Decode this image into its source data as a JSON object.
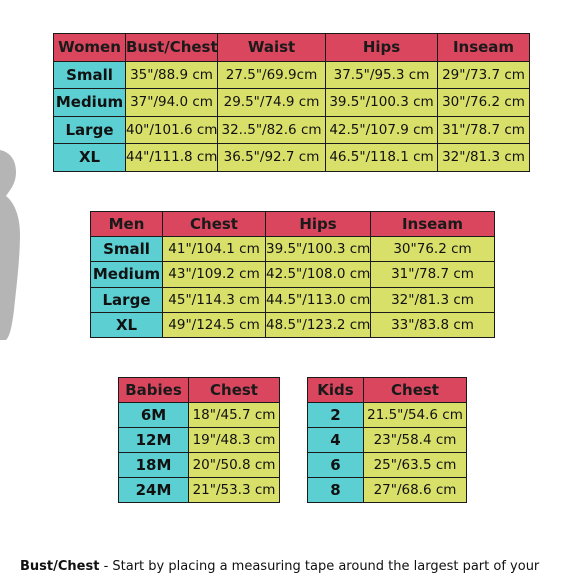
{
  "women": {
    "headers": [
      "Women",
      "Bust/Chest",
      "Waist",
      "Hips",
      "Inseam"
    ],
    "rows": [
      [
        "Small",
        "35\"/88.9 cm",
        "27.5\"/69.9cm",
        "37.5\"/95.3 cm",
        "29\"/73.7 cm"
      ],
      [
        "Medium",
        "37\"/94.0 cm",
        "29.5\"/74.9 cm",
        "39.5\"/100.3 cm",
        "30\"/76.2 cm"
      ],
      [
        "Large",
        "40\"/101.6 cm",
        "32..5\"/82.6 cm",
        "42.5\"/107.9 cm",
        "31\"/78.7 cm"
      ],
      [
        "XL",
        "44\"/111.8 cm",
        "36.5\"/92.7 cm",
        "46.5\"/118.1 cm",
        "32\"/81.3 cm"
      ]
    ]
  },
  "men": {
    "headers": [
      "Men",
      "Chest",
      "Hips",
      "Inseam"
    ],
    "rows": [
      [
        "Small",
        "41\"/104.1 cm",
        "39.5\"/100.3 cm",
        "30\"76.2 cm"
      ],
      [
        "Medium",
        "43\"/109.2 cm",
        "42.5\"/108.0 cm",
        "31\"/78.7 cm"
      ],
      [
        "Large",
        "45\"/114.3 cm",
        "44.5\"/113.0 cm",
        "32\"/81.3 cm"
      ],
      [
        "XL",
        "49\"/124.5 cm",
        "48.5\"/123.2 cm",
        "33\"/83.8 cm"
      ]
    ]
  },
  "babies": {
    "headers": [
      "Babies",
      "Chest"
    ],
    "rows": [
      [
        "6M",
        "18\"/45.7 cm"
      ],
      [
        "12M",
        "19\"/48.3 cm"
      ],
      [
        "18M",
        "20\"/50.8 cm"
      ],
      [
        "24M",
        "21\"/53.3 cm"
      ]
    ]
  },
  "kids": {
    "headers": [
      "Kids",
      "Chest"
    ],
    "rows": [
      [
        "2",
        "21.5\"/54.6 cm"
      ],
      [
        "4",
        "23\"/58.4 cm"
      ],
      [
        "6",
        "25\"/63.5 cm"
      ],
      [
        "8",
        "27\"/68.6 cm"
      ]
    ]
  },
  "note": {
    "term": "Bust/Chest",
    "text": " - Start by placing a measuring tape around the largest part of your"
  },
  "colors": {
    "header": "#d9465e",
    "label": "#5ccfd3",
    "value": "#d9e06a"
  }
}
